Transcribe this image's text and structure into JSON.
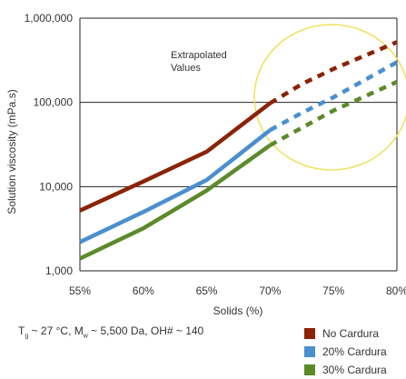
{
  "chart_data": {
    "type": "line",
    "y_scale": "log",
    "ylim": [
      1000,
      1000000
    ],
    "xlim": [
      55,
      80
    ],
    "xlabel": "Solids (%)",
    "ylabel": "Solution viscosity (mPa.s)",
    "x_tick_labels": [
      "55%",
      "60%",
      "65%",
      "70%",
      "75%",
      "80%"
    ],
    "y_tick_labels": [
      "1,000",
      "10,000",
      "100,000",
      "1,000,000"
    ],
    "grid": "horizontal",
    "annotation": "Extrapolated\nValues",
    "highlight_circle_color": "#f0e160",
    "series": [
      {
        "name": "No Cardura",
        "color": "#8b2307",
        "x": [
          55,
          60,
          65,
          70,
          72.5,
          75,
          80
        ],
        "y": [
          5200,
          11500,
          26000,
          98000,
          165000,
          250000,
          520000
        ],
        "measured_until_x": 70
      },
      {
        "name": "20% Cardura",
        "color": "#4a8fcf",
        "x": [
          55,
          60,
          65,
          70,
          72.5,
          75,
          80
        ],
        "y": [
          2200,
          5000,
          12000,
          47000,
          75000,
          115000,
          300000
        ],
        "measured_until_x": 70
      },
      {
        "name": "30% Cardura",
        "color": "#5b8a2b",
        "x": [
          55,
          60,
          65,
          70,
          72.5,
          75,
          80
        ],
        "y": [
          1400,
          3200,
          9000,
          31000,
          50000,
          80000,
          175000
        ],
        "measured_until_x": 70
      }
    ]
  },
  "footnote": {
    "t_symbol": "T",
    "t_sub": "g",
    "t_rest": " ~ 27 °C, M",
    "m_sub": "w",
    "m_rest": " ~ 5,500 Da, OH# ~ 140"
  },
  "legend": [
    {
      "label": "No Cardura",
      "color": "#8b2307"
    },
    {
      "label": "20% Cardura",
      "color": "#4a8fcf"
    },
    {
      "label": "30% Cardura",
      "color": "#5b8a2b"
    }
  ]
}
